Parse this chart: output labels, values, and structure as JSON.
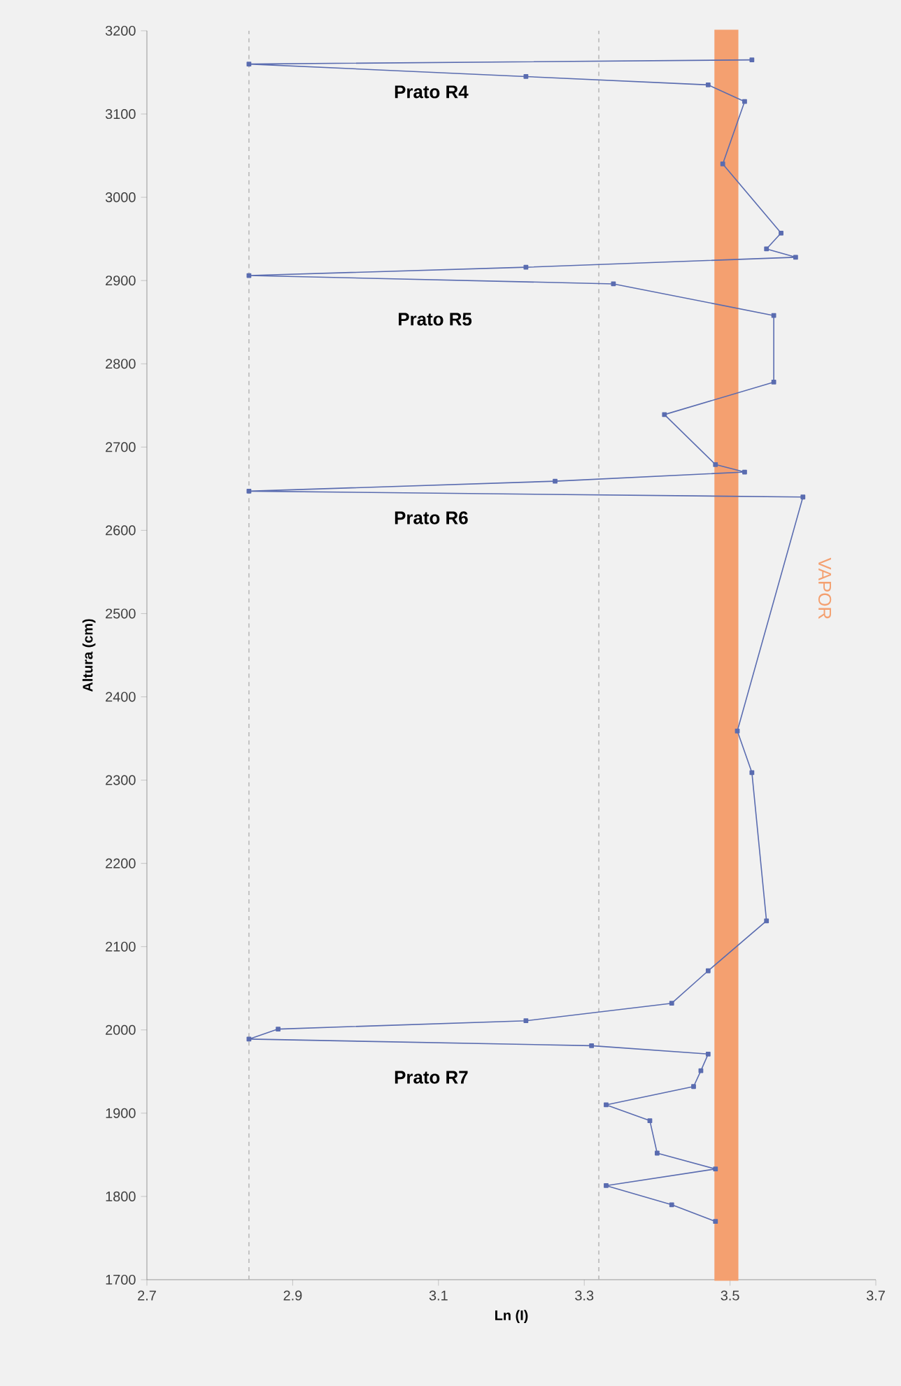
{
  "chart_data": {
    "type": "line",
    "xlabel": "Ln (I)",
    "ylabel": "Altura (cm)",
    "xlim": [
      2.7,
      3.7
    ],
    "xticks": [
      2.7,
      2.9,
      3.1,
      3.3,
      3.5,
      3.7
    ],
    "ylim": [
      1700,
      3200
    ],
    "yticks": [
      1700,
      1800,
      1900,
      2000,
      2100,
      2200,
      2300,
      2400,
      2500,
      2600,
      2700,
      2800,
      2900,
      3000,
      3100,
      3200
    ],
    "marker": "square",
    "grid": false,
    "series": [
      {
        "color": "#5a6cb0",
        "x": [
          3.53,
          2.84,
          3.22,
          3.47,
          3.52,
          3.49,
          3.57,
          3.55,
          3.59,
          3.22,
          2.84,
          3.34,
          3.56,
          3.56,
          3.41,
          3.48,
          3.52,
          3.26,
          2.84,
          3.6,
          3.51,
          3.53,
          3.55,
          3.47,
          3.42,
          3.22,
          2.88,
          2.84,
          3.31,
          3.47,
          3.46,
          3.45,
          3.33,
          3.39,
          3.4,
          3.48,
          3.33,
          3.42,
          3.48
        ],
        "values": [
          3165,
          3160,
          3145,
          3135,
          3115,
          3040,
          2957,
          2938,
          2928,
          2916,
          2906,
          2896,
          2858,
          2778,
          2739,
          2679,
          2670,
          2659,
          2647,
          2640,
          2359,
          2309,
          2131,
          2071,
          2032,
          2011,
          2001,
          1989,
          1981,
          1971,
          1951,
          1932,
          1910,
          1891,
          1852,
          1833,
          1813,
          1790,
          1770
        ]
      }
    ],
    "ref_lines": [
      {
        "axis": "x",
        "value": 2.84,
        "color": "#b8b8b8",
        "line_style": "dashed"
      },
      {
        "axis": "x",
        "value": 3.32,
        "color": "#b8b8b8",
        "line_style": "dashed"
      }
    ],
    "bands": [
      {
        "axis": "x",
        "from": 3.48,
        "to": 3.51,
        "label": "VAPOR",
        "color": "#f4a070"
      }
    ],
    "annotations": [
      "Prato R4",
      "Prato R5",
      "Prato R6",
      "Prato R7"
    ]
  }
}
